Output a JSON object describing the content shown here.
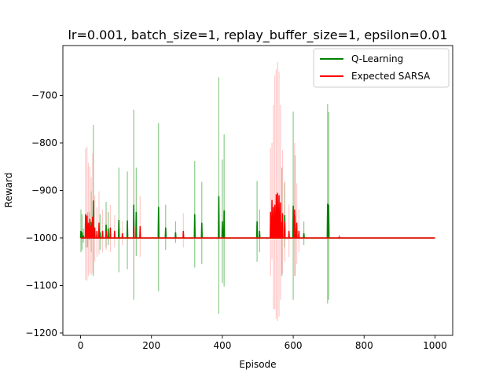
{
  "chart_data": {
    "type": "line",
    "title": "lr=0.001, batch_size=1, replay_buffer_size=1, epsilon=0.01",
    "xlabel": "Episode",
    "ylabel": "Reward",
    "xlim": [
      -50,
      1050
    ],
    "ylim": [
      -1205,
      -595
    ],
    "xticks": [
      0,
      200,
      400,
      600,
      800,
      1000
    ],
    "xtick_labels": [
      "0",
      "200",
      "400",
      "600",
      "800",
      "1000"
    ],
    "yticks": [
      -1200,
      -1100,
      -1000,
      -900,
      -800,
      -700
    ],
    "ytick_labels": [
      "−1200",
      "−1100",
      "−1000",
      "−900",
      "−800",
      "−700"
    ],
    "grid": false,
    "legend_position": "upper right",
    "baseline": -1000,
    "x_end": 1000,
    "series": [
      {
        "name": "Q-Learning",
        "color": "#008000",
        "band_color": "#2ca02c",
        "spikes": [
          {
            "x": 1,
            "mean": -985,
            "low": -1030,
            "high": -940
          },
          {
            "x": 4,
            "mean": -988,
            "low": -1025,
            "high": -950
          },
          {
            "x": 8,
            "mean": -995,
            "low": -1010,
            "high": -980
          },
          {
            "x": 15,
            "mean": -985,
            "low": -1020,
            "high": -950
          },
          {
            "x": 20,
            "mean": -982,
            "low": -1020,
            "high": -946
          },
          {
            "x": 25,
            "mean": -975,
            "low": -1005,
            "high": -945
          },
          {
            "x": 30,
            "mean": -966,
            "low": -1030,
            "high": -902
          },
          {
            "x": 36,
            "mean": -921,
            "low": -1080,
            "high": -762
          },
          {
            "x": 55,
            "mean": -988,
            "low": -1025,
            "high": -950
          },
          {
            "x": 72,
            "mean": -972,
            "low": -1020,
            "high": -924
          },
          {
            "x": 78,
            "mean": -980,
            "low": -1015,
            "high": -945
          },
          {
            "x": 108,
            "mean": -962,
            "low": -1072,
            "high": -852
          },
          {
            "x": 132,
            "mean": -963,
            "low": -1066,
            "high": -860
          },
          {
            "x": 150,
            "mean": -930,
            "low": -1130,
            "high": -730
          },
          {
            "x": 157,
            "mean": -945,
            "low": -1038,
            "high": -852
          },
          {
            "x": 220,
            "mean": -935,
            "low": -1112,
            "high": -758
          },
          {
            "x": 240,
            "mean": -978,
            "low": -1025,
            "high": -930
          },
          {
            "x": 268,
            "mean": -988,
            "low": -1010,
            "high": -965
          },
          {
            "x": 322,
            "mean": -950,
            "low": -1062,
            "high": -838
          },
          {
            "x": 342,
            "mean": -968,
            "low": -1055,
            "high": -882
          },
          {
            "x": 390,
            "mean": -912,
            "low": -1160,
            "high": -662
          },
          {
            "x": 400,
            "mean": -965,
            "low": -1095,
            "high": -835
          },
          {
            "x": 405,
            "mean": -942,
            "low": -1102,
            "high": -782
          },
          {
            "x": 498,
            "mean": -965,
            "low": -1050,
            "high": -880
          },
          {
            "x": 505,
            "mean": -985,
            "low": -1030,
            "high": -940
          },
          {
            "x": 568,
            "mean": -966,
            "low": -1080,
            "high": -852
          },
          {
            "x": 576,
            "mean": -952,
            "low": -1020,
            "high": -884
          },
          {
            "x": 600,
            "mean": -932,
            "low": -1130,
            "high": -734
          },
          {
            "x": 605,
            "mean": -953,
            "low": -1080,
            "high": -826
          },
          {
            "x": 630,
            "mean": -990,
            "low": -1015,
            "high": -965
          },
          {
            "x": 697,
            "mean": -928,
            "low": -1138,
            "high": -718
          },
          {
            "x": 700,
            "mean": -930,
            "low": -1130,
            "high": -735
          }
        ]
      },
      {
        "name": "Expected SARSA",
        "color": "#ff0000",
        "band_color": "#ff9d9d",
        "spikes": [
          {
            "x": 14,
            "mean": -950,
            "low": -1088,
            "high": -812
          },
          {
            "x": 18,
            "mean": -953,
            "low": -1090,
            "high": -808
          },
          {
            "x": 22,
            "mean": -968,
            "low": -1080,
            "high": -842
          },
          {
            "x": 26,
            "mean": -960,
            "low": -1074,
            "high": -850
          },
          {
            "x": 30,
            "mean": -975,
            "low": -1078,
            "high": -872
          },
          {
            "x": 34,
            "mean": -955,
            "low": -1075,
            "high": -822
          },
          {
            "x": 40,
            "mean": -978,
            "low": -1050,
            "high": -910
          },
          {
            "x": 46,
            "mean": -985,
            "low": -1040,
            "high": -935
          },
          {
            "x": 52,
            "mean": -968,
            "low": -1035,
            "high": -902
          },
          {
            "x": 62,
            "mean": -985,
            "low": -1030,
            "high": -940
          },
          {
            "x": 72,
            "mean": -985,
            "low": -1025,
            "high": -945
          },
          {
            "x": 84,
            "mean": -978,
            "low": -1030,
            "high": -930
          },
          {
            "x": 96,
            "mean": -985,
            "low": -1020,
            "high": -952
          },
          {
            "x": 118,
            "mean": -990,
            "low": -1015,
            "high": -965
          },
          {
            "x": 150,
            "mean": -976,
            "low": -1070,
            "high": -882
          },
          {
            "x": 168,
            "mean": -975,
            "low": -1040,
            "high": -912
          },
          {
            "x": 290,
            "mean": -985,
            "low": -1020,
            "high": -948
          },
          {
            "x": 536,
            "mean": -945,
            "low": -1080,
            "high": -810
          },
          {
            "x": 540,
            "mean": -920,
            "low": -1045,
            "high": -800
          },
          {
            "x": 544,
            "mean": -935,
            "low": -1150,
            "high": -720
          },
          {
            "x": 548,
            "mean": -930,
            "low": -1150,
            "high": -658
          },
          {
            "x": 552,
            "mean": -908,
            "low": -1170,
            "high": -645
          },
          {
            "x": 556,
            "mean": -905,
            "low": -1175,
            "high": -630
          },
          {
            "x": 560,
            "mean": -910,
            "low": -1165,
            "high": -650
          },
          {
            "x": 564,
            "mean": -925,
            "low": -1130,
            "high": -720
          },
          {
            "x": 570,
            "mean": -948,
            "low": -1075,
            "high": -815
          },
          {
            "x": 576,
            "mean": -965,
            "low": -1050,
            "high": -880
          },
          {
            "x": 588,
            "mean": -985,
            "low": -1040,
            "high": -930
          },
          {
            "x": 604,
            "mean": -940,
            "low": -1080,
            "high": -800
          },
          {
            "x": 610,
            "mean": -968,
            "low": -1055,
            "high": -885
          },
          {
            "x": 616,
            "mean": -985,
            "low": -1030,
            "high": -940
          },
          {
            "x": 730,
            "mean": -998,
            "low": -1003,
            "high": -993
          }
        ]
      }
    ]
  }
}
